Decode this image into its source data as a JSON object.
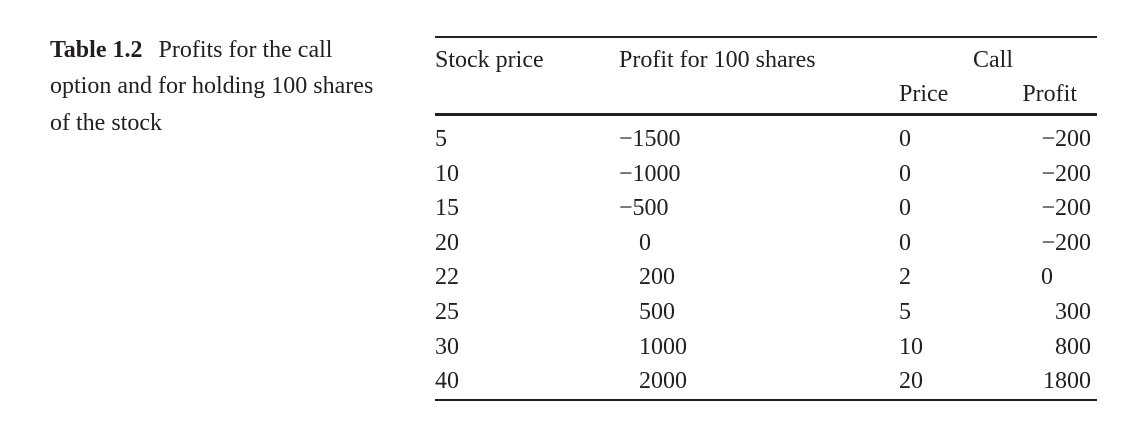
{
  "caption": {
    "label": "Table 1.2",
    "text": "Profits for the call option and for holding 100 shares of the stock"
  },
  "table": {
    "headers": {
      "stock_price": "Stock price",
      "profit_shares": "Profit for 100 shares",
      "call_group": "Call",
      "call_price": "Price",
      "call_profit": "Profit"
    },
    "rows": [
      {
        "stock": "5",
        "shares": "−1500",
        "price": "0",
        "profit": "−200"
      },
      {
        "stock": "10",
        "shares": "−1000",
        "price": "0",
        "profit": "−200"
      },
      {
        "stock": "15",
        "shares": "−500",
        "price": "0",
        "profit": "−200"
      },
      {
        "stock": "20",
        "shares": "0",
        "price": "0",
        "profit": "−200"
      },
      {
        "stock": "22",
        "shares": "200",
        "price": "2",
        "profit": "0"
      },
      {
        "stock": "25",
        "shares": "500",
        "price": "5",
        "profit": "300"
      },
      {
        "stock": "30",
        "shares": "1000",
        "price": "10",
        "profit": "800"
      },
      {
        "stock": "40",
        "shares": "2000",
        "price": "20",
        "profit": "1800"
      }
    ]
  }
}
